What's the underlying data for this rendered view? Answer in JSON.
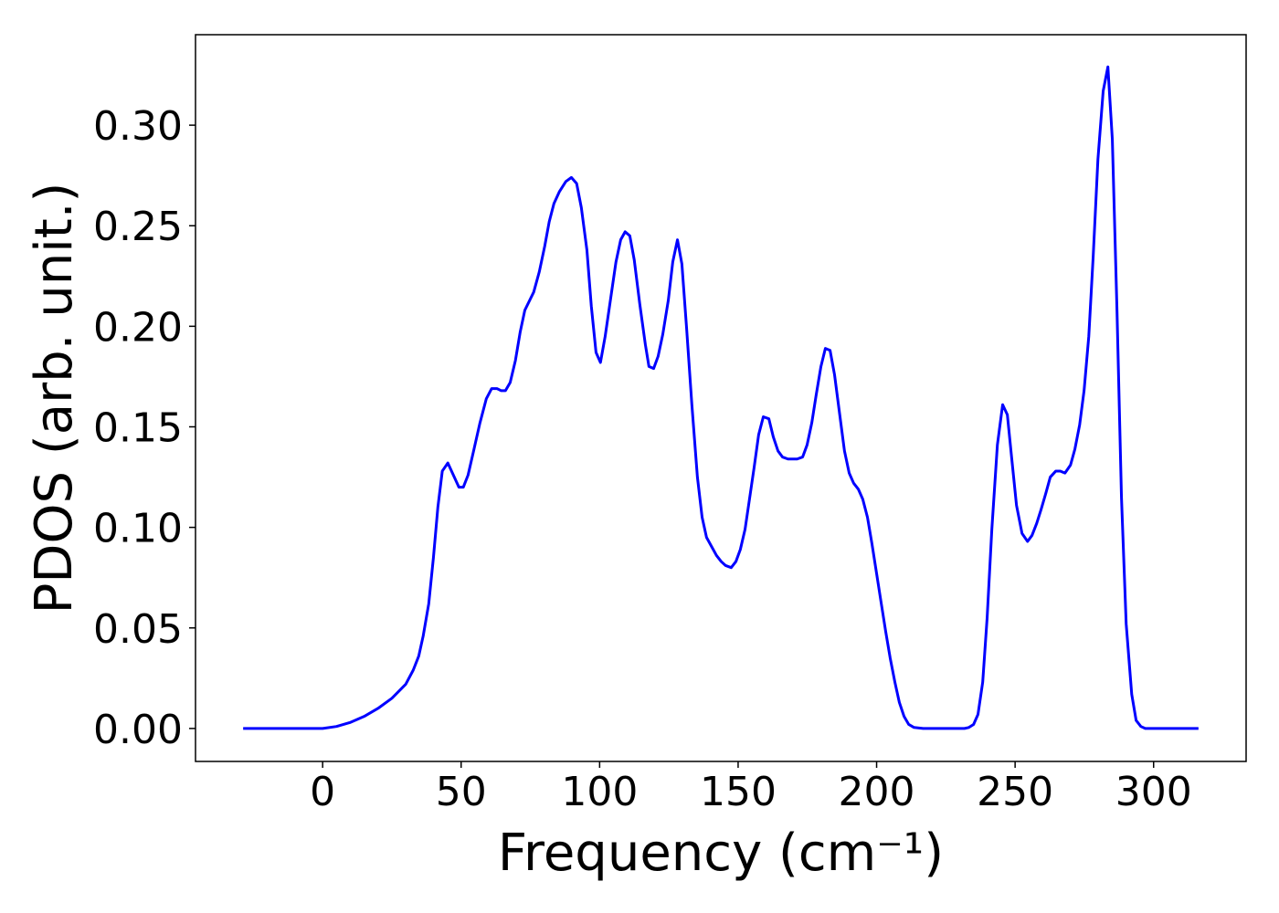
{
  "chart_data": {
    "type": "line",
    "x_label": "Frequency (cm⁻¹)",
    "y_label": "PDOS (arb. unit.)",
    "series": [
      {
        "color": "#0000ff",
        "x": [
          -28.7,
          -20,
          -10,
          0,
          5,
          10,
          15,
          20,
          25,
          30,
          32.7,
          34.7,
          36.3,
          38.3,
          40,
          41.6,
          43.2,
          45.2,
          47.2,
          49.2,
          50.8,
          52.5,
          54.5,
          56.8,
          59.1,
          61,
          63,
          64.4,
          66,
          67.7,
          69.6,
          71.3,
          73,
          76.2,
          78.2,
          80.2,
          81.8,
          83.5,
          85.5,
          87.8,
          89.8,
          91.7,
          93.4,
          95.4,
          97,
          98.7,
          100.3,
          102,
          104,
          105.9,
          107.6,
          109.2,
          110.9,
          112.5,
          114.5,
          116.5,
          117.8,
          119.5,
          121.1,
          122.8,
          124.8,
          126.4,
          128.1,
          129.7,
          131.4,
          133.3,
          135.3,
          137,
          138.6,
          140.6,
          142.2,
          143.9,
          145.5,
          147.5,
          149.2,
          150.8,
          152.5,
          154.1,
          155.8,
          157.4,
          159.1,
          161.1,
          162.7,
          164.4,
          166,
          168,
          171.3,
          173.3,
          174.9,
          176.6,
          178.2,
          179.9,
          181.5,
          183.2,
          184.8,
          186.5,
          188.4,
          190.1,
          191.7,
          193.4,
          195,
          196.7,
          198.3,
          200,
          201.7,
          203.3,
          204.9,
          206.6,
          208.2,
          209.9,
          211.6,
          213.5,
          216.8,
          231.7,
          233.3,
          235,
          236.6,
          238.3,
          239.9,
          241.6,
          243.6,
          245.5,
          247.2,
          248.8,
          250.5,
          252.5,
          254.5,
          256.1,
          257.8,
          259.4,
          261.1,
          262.7,
          264.7,
          266.3,
          268,
          270,
          271.6,
          273.3,
          274.9,
          276.6,
          278.2,
          279.9,
          281.8,
          283.5,
          285.1,
          286.8,
          288.4,
          290.1,
          292.1,
          293.7,
          295.4,
          297,
          316.2
        ],
        "values": [
          0,
          0,
          0,
          0,
          0.001,
          0.003,
          0.006,
          0.01,
          0.015,
          0.022,
          0.029,
          0.036,
          0.046,
          0.062,
          0.085,
          0.11,
          0.128,
          0.132,
          0.126,
          0.12,
          0.12,
          0.126,
          0.138,
          0.152,
          0.164,
          0.169,
          0.169,
          0.168,
          0.168,
          0.172,
          0.183,
          0.197,
          0.208,
          0.217,
          0.227,
          0.24,
          0.252,
          0.261,
          0.267,
          0.272,
          0.274,
          0.271,
          0.259,
          0.238,
          0.21,
          0.187,
          0.182,
          0.195,
          0.214,
          0.232,
          0.243,
          0.247,
          0.245,
          0.233,
          0.211,
          0.191,
          0.18,
          0.179,
          0.185,
          0.196,
          0.213,
          0.232,
          0.243,
          0.231,
          0.199,
          0.161,
          0.125,
          0.105,
          0.095,
          0.09,
          0.086,
          0.083,
          0.081,
          0.08,
          0.083,
          0.089,
          0.099,
          0.114,
          0.13,
          0.146,
          0.155,
          0.154,
          0.145,
          0.138,
          0.135,
          0.134,
          0.134,
          0.135,
          0.141,
          0.152,
          0.166,
          0.18,
          0.189,
          0.188,
          0.176,
          0.158,
          0.138,
          0.127,
          0.122,
          0.119,
          0.114,
          0.105,
          0.092,
          0.077,
          0.062,
          0.048,
          0.035,
          0.023,
          0.013,
          0.006,
          0.002,
          0.0005,
          0,
          0,
          0.0005,
          0.002,
          0.007,
          0.023,
          0.055,
          0.099,
          0.141,
          0.161,
          0.156,
          0.134,
          0.111,
          0.097,
          0.093,
          0.096,
          0.102,
          0.109,
          0.117,
          0.125,
          0.128,
          0.128,
          0.127,
          0.131,
          0.139,
          0.151,
          0.168,
          0.195,
          0.235,
          0.283,
          0.317,
          0.329,
          0.293,
          0.207,
          0.115,
          0.052,
          0.017,
          0.004,
          0.001,
          0,
          0
        ]
      }
    ],
    "xlim": [
      -45.9,
      333.4
    ],
    "ylim": [
      -0.0164,
      0.345
    ],
    "xticks": [
      0,
      50,
      100,
      150,
      200,
      250,
      300
    ],
    "yticks": [
      {
        "value": 0,
        "label": "0.00"
      },
      {
        "value": 0.05,
        "label": "0.05"
      },
      {
        "value": 0.1,
        "label": "0.10"
      },
      {
        "value": 0.15,
        "label": "0.15"
      },
      {
        "value": 0.2,
        "label": "0.20"
      },
      {
        "value": 0.25,
        "label": "0.25"
      },
      {
        "value": 0.3,
        "label": "0.30"
      }
    ]
  }
}
